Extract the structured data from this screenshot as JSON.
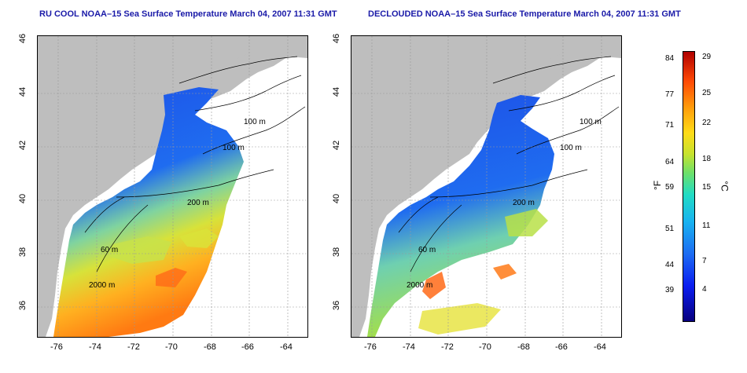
{
  "maps": [
    {
      "title": "RU COOL NOAA–15 Sea Surface Temperature March 04, 2007 11:31 GMT",
      "x_ticks": [
        "-76",
        "-74",
        "-72",
        "-70",
        "-68",
        "-66",
        "-64"
      ],
      "y_ticks": [
        "36",
        "38",
        "40",
        "42",
        "44",
        "46"
      ],
      "contour_labels": [
        "100 m",
        "100 m",
        "200 m",
        "60 m",
        "2000 m"
      ]
    },
    {
      "title": "DECLOUDED NOAA–15 Sea Surface Temperature March 04, 2007 11:31 GMT",
      "x_ticks": [
        "-76",
        "-74",
        "-72",
        "-70",
        "-68",
        "-66",
        "-64"
      ],
      "y_ticks": [
        "36",
        "38",
        "40",
        "42",
        "44",
        "46"
      ],
      "contour_labels": [
        "100 m",
        "100 m",
        "200 m",
        "60 m",
        "2000 m"
      ]
    }
  ],
  "colorbar": {
    "fahrenheit_ticks": [
      "84",
      "77",
      "71",
      "64",
      "59",
      "51",
      "44",
      "39"
    ],
    "celsius_ticks": [
      "29",
      "25",
      "22",
      "18",
      "15",
      "11",
      "7",
      "4"
    ],
    "fahrenheit_unit": "°F",
    "celsius_unit": "°C",
    "colors": [
      "#08007e",
      "#0a1df0",
      "#1d6cf2",
      "#18b3f0",
      "#21dcc4",
      "#6de06a",
      "#c6e22e",
      "#ffdb17",
      "#ff9e0b",
      "#ff4a06",
      "#b00000"
    ]
  },
  "colors": {
    "land": "#bebebe",
    "water_cold": "#1f4fe8",
    "water_mid": "#9fe03a",
    "water_warm": "#ff6a10"
  }
}
